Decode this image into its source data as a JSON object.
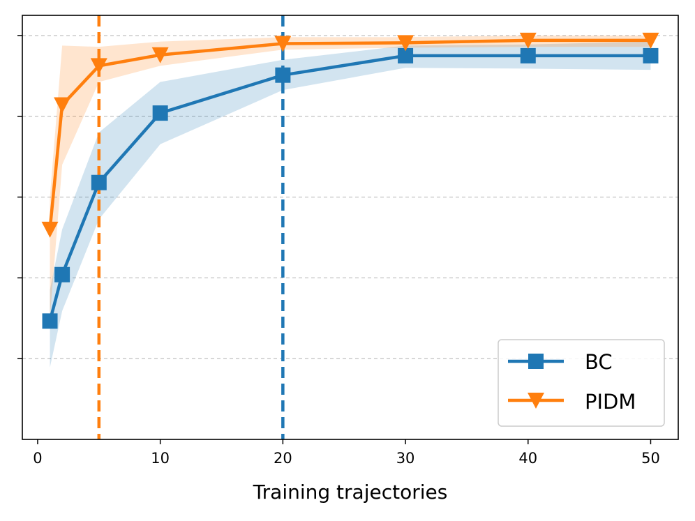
{
  "chart_data": {
    "type": "line",
    "title": "",
    "xlabel": "Training trajectories",
    "ylabel": "",
    "xlim": [
      -1.25,
      52.25
    ],
    "ylim": [
      0.0,
      1.05
    ],
    "xticks": [
      0,
      10,
      20,
      30,
      40,
      50
    ],
    "xtick_labels": [
      "0",
      "10",
      "20",
      "30",
      "40",
      "50"
    ],
    "yticks": [
      0.2,
      0.4,
      0.6,
      0.8,
      1.0
    ],
    "ytick_labels": [
      "",
      "",
      "",
      "",
      ""
    ],
    "grid": "horizontal-dashed",
    "legend_position": "lower-right",
    "series": [
      {
        "name": "BC",
        "color": "#1f77b4",
        "marker": "square",
        "x": [
          1,
          2,
          5,
          10,
          20,
          30,
          40,
          50
        ],
        "y": [
          0.293,
          0.408,
          0.636,
          0.808,
          0.902,
          0.95,
          0.95,
          0.95
        ],
        "y_low": [
          0.178,
          0.318,
          0.545,
          0.731,
          0.865,
          0.92,
          0.918,
          0.915
        ],
        "y_high": [
          0.37,
          0.52,
          0.76,
          0.885,
          0.94,
          0.975,
          0.978,
          0.985
        ]
      },
      {
        "name": "PIDM",
        "color": "#ff7f0e",
        "marker": "triangle-down",
        "x": [
          1,
          2,
          5,
          10,
          20,
          30,
          40,
          50
        ],
        "y": [
          0.52,
          0.828,
          0.925,
          0.952,
          0.98,
          0.982,
          0.988,
          0.988
        ],
        "y_low": [
          0.3,
          0.68,
          0.885,
          0.925,
          0.965,
          0.97,
          0.972,
          0.972
        ],
        "y_high": [
          0.6,
          0.975,
          0.972,
          0.985,
          0.996,
          0.996,
          1.0,
          1.0
        ]
      }
    ],
    "vlines": [
      {
        "x": 5,
        "color": "#ff7f0e",
        "style": "dashed"
      },
      {
        "x": 20,
        "color": "#1f77b4",
        "style": "dashed"
      }
    ]
  }
}
